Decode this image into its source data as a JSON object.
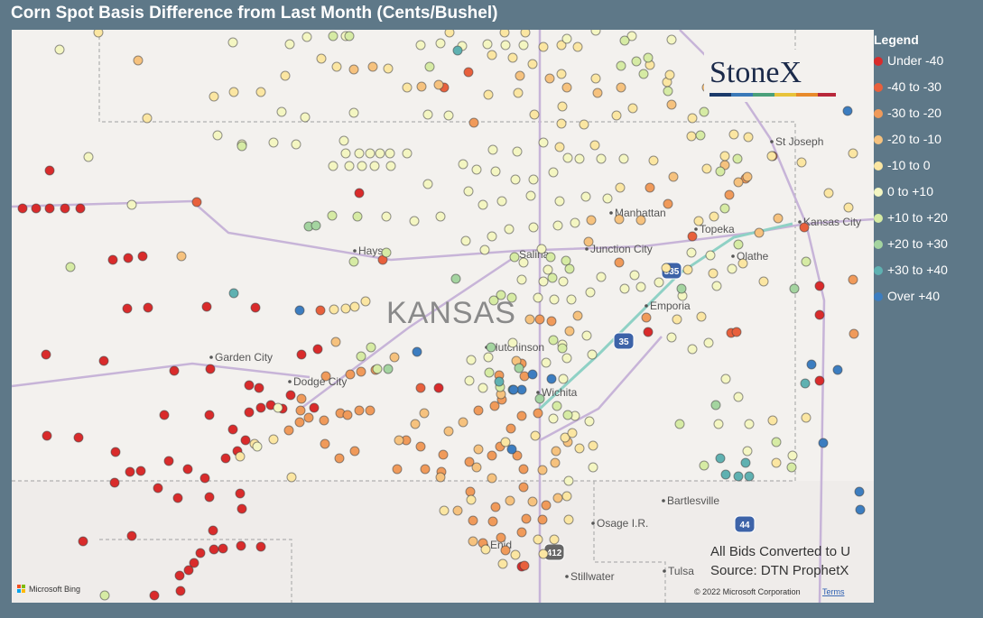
{
  "title": "Corn Spot Basis Difference from Last Month (Cents/Bushel)",
  "legend": {
    "title": "Legend",
    "items": [
      {
        "label": "Under -40",
        "color": "#d92b2b"
      },
      {
        "label": "-40 to -30",
        "color": "#e8603c"
      },
      {
        "label": "-30 to -20",
        "color": "#f09a5a"
      },
      {
        "label": "-20 to -10",
        "color": "#f6c27e"
      },
      {
        "label": "-10 to 0",
        "color": "#fbe6a2"
      },
      {
        "label": "0 to +10",
        "color": "#f4f6c2"
      },
      {
        "label": "+10 to +20",
        "color": "#d6eba4"
      },
      {
        "label": "+20 to +30",
        "color": "#a4d4a0"
      },
      {
        "label": "+30 to +40",
        "color": "#5fb1b1"
      },
      {
        "label": "Over +40",
        "color": "#3c7dc0"
      }
    ]
  },
  "logo": "StoneX",
  "map_labels": [
    "St Joseph",
    "Manhattan",
    "Topeka",
    "Kansas City",
    "Hays",
    "Salina",
    "Junction City",
    "Olathe",
    "Emporia",
    "Garden City",
    "Hutchinson",
    "Dodge City",
    "Wichita",
    "Bartlesville",
    "Osage I.R.",
    "Enid",
    "Stillwater",
    "Tulsa"
  ],
  "state_label": "KANSAS",
  "highways": [
    "335",
    "35",
    "44",
    "412"
  ],
  "notes": [
    "All Bids Converted to U",
    "Source: DTN ProphetX"
  ],
  "attribution": {
    "bing": "Microsoft Bing",
    "copyright": "© 2022 Microsoft Corporation",
    "terms": "Terms"
  }
}
